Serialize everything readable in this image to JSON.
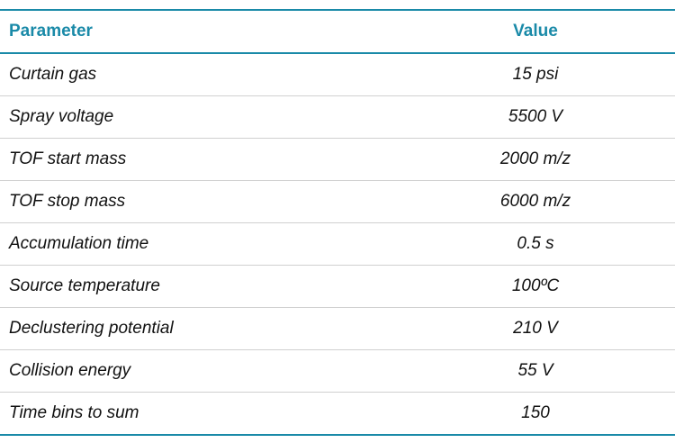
{
  "table": {
    "header": [
      "Parameter",
      "Value"
    ],
    "rows": [
      [
        "Curtain gas",
        "15 psi"
      ],
      [
        "Spray voltage",
        "5500 V"
      ],
      [
        "TOF start mass",
        "2000 m/z"
      ],
      [
        "TOF stop mass",
        "6000 m/z"
      ],
      [
        "Accumulation time",
        "0.5 s"
      ],
      [
        "Source temperature",
        "100ºC"
      ],
      [
        "Declustering potential",
        "210 V"
      ],
      [
        "Collision energy",
        "55 V"
      ],
      [
        "Time bins to sum",
        "150"
      ]
    ]
  }
}
